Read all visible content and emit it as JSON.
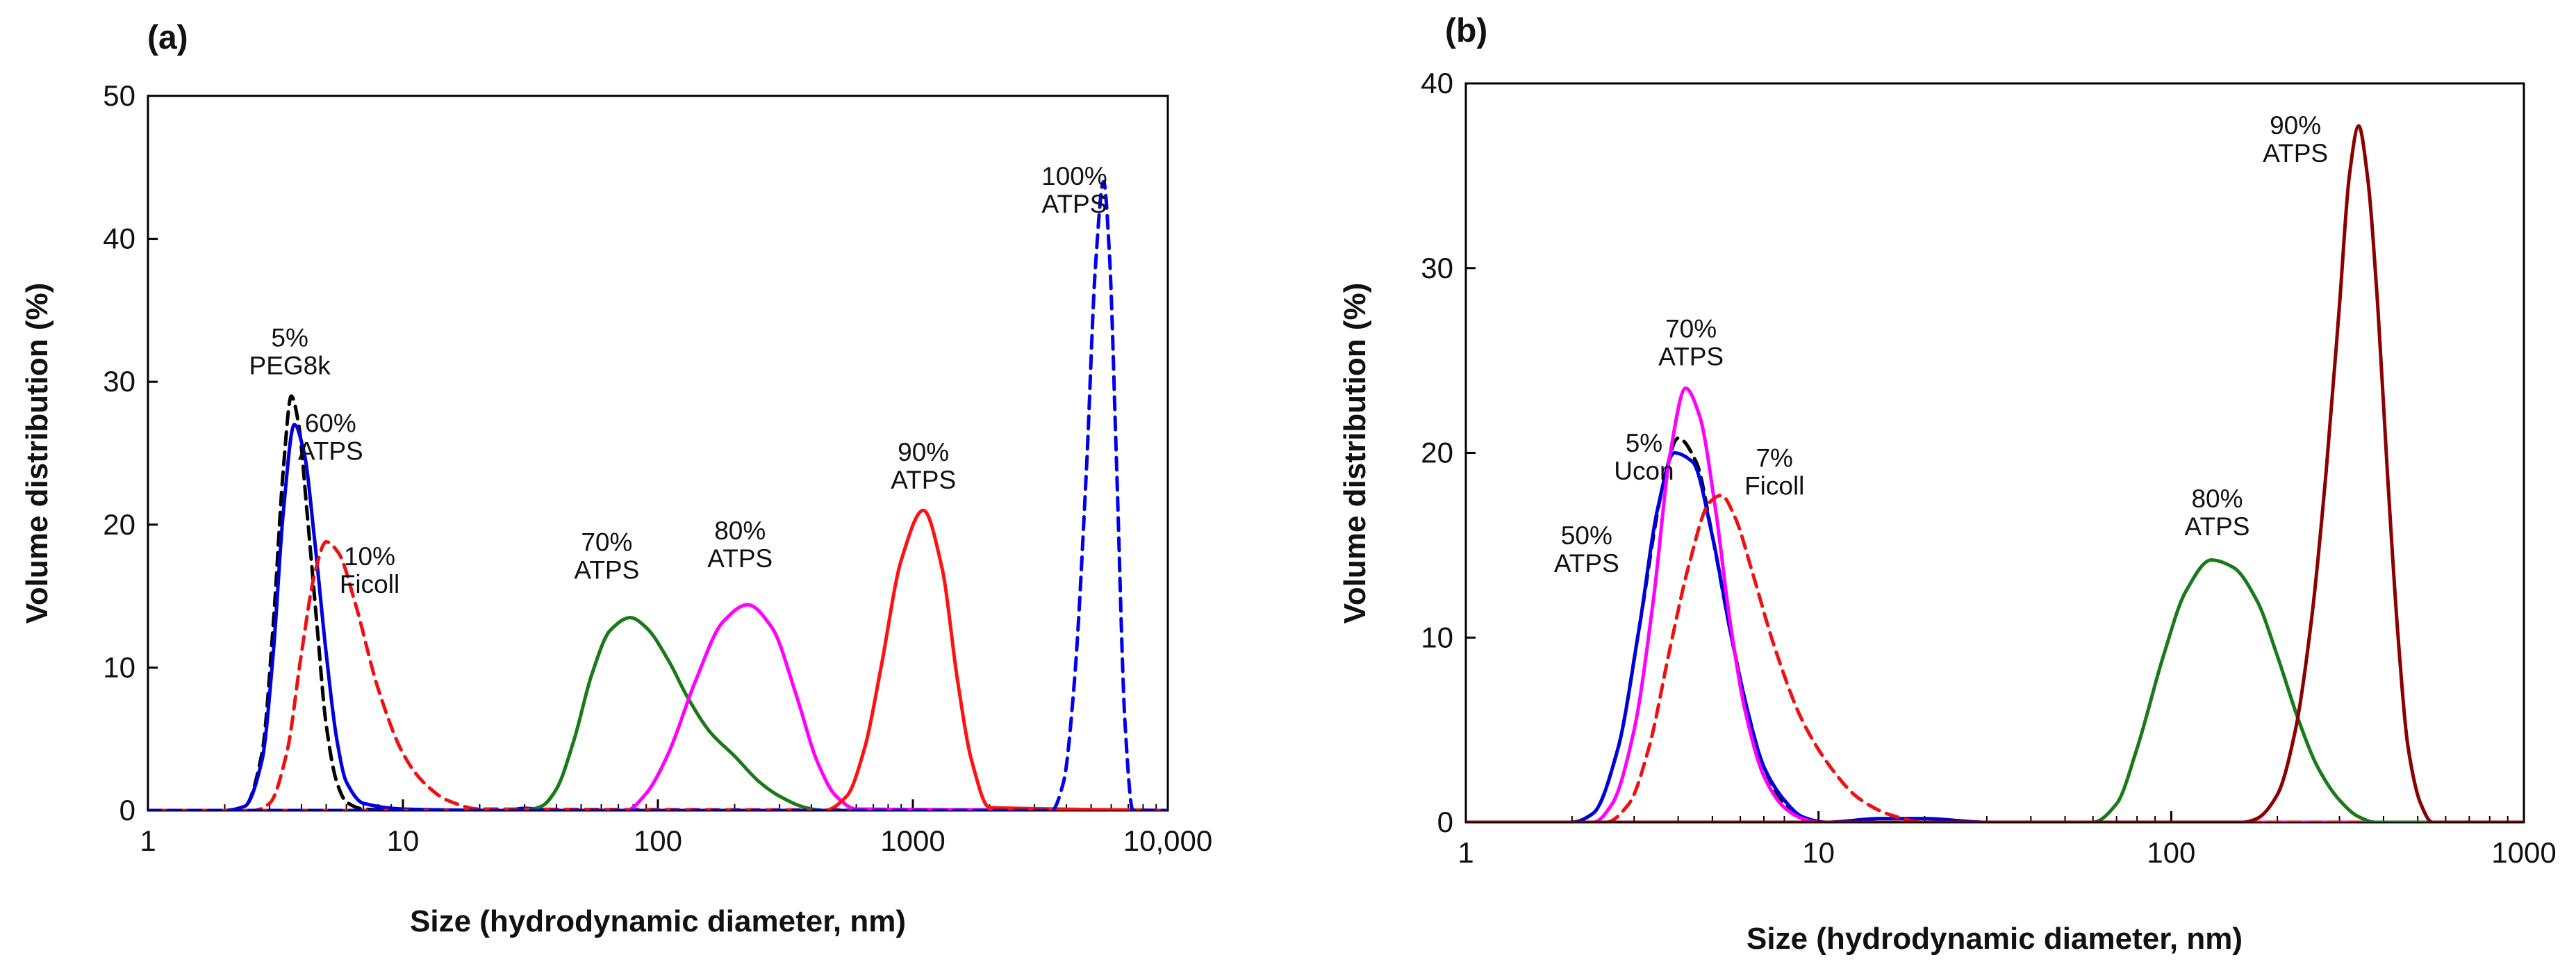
{
  "chart_data": [
    {
      "panel": "(a)",
      "type": "line",
      "xscale": "log",
      "xlabel": "Size (hydrodynamic diameter, nm)",
      "ylabel": "Volume distribution (%)",
      "xlim": [
        1,
        10000
      ],
      "ylim": [
        0,
        50
      ],
      "xticks": [
        1,
        10,
        100,
        1000,
        10000
      ],
      "xtick_labels": [
        "1",
        "10",
        "100",
        "1000",
        "10,000"
      ],
      "yticks": [
        0,
        10,
        20,
        30,
        40,
        50
      ],
      "ytick_labels": [
        "0",
        "10",
        "20",
        "30",
        "40",
        "50"
      ],
      "grid": false,
      "series": [
        {
          "name": "5% PEG8k",
          "color": "#000000",
          "dashed": true,
          "x": [
            1,
            2,
            2.4,
            2.8,
            3.1,
            3.4,
            3.65,
            3.9,
            4.2,
            4.6,
            5.0,
            5.5,
            6.0,
            7,
            10,
            10000
          ],
          "y": [
            0,
            0,
            0.3,
            4,
            13,
            24,
            29,
            27,
            21,
            13,
            6,
            2,
            0.6,
            0.1,
            0,
            0
          ]
        },
        {
          "name": "60% ATPS",
          "color": "#0000dd",
          "dashed": false,
          "x": [
            1,
            2,
            2.4,
            2.8,
            3.1,
            3.4,
            3.75,
            4.1,
            4.5,
            5.0,
            5.5,
            6.0,
            7,
            10,
            25,
            30,
            40,
            100,
            10000
          ],
          "y": [
            0,
            0,
            0.3,
            3.5,
            11,
            21,
            27,
            25,
            19,
            11,
            5,
            2,
            0.5,
            0.1,
            0,
            0.15,
            0,
            0,
            0
          ]
        },
        {
          "name": "10% Ficoll",
          "color": "#ee1111",
          "dashed": true,
          "x": [
            1,
            2.6,
            3.0,
            3.5,
            4.0,
            4.5,
            5.0,
            5.6,
            6.5,
            8,
            10,
            12,
            15,
            20,
            10000
          ],
          "y": [
            0,
            0,
            0.5,
            4,
            11,
            16.5,
            18.8,
            18,
            14.5,
            8.5,
            4,
            2,
            0.7,
            0.1,
            0
          ]
        },
        {
          "name": "70% ATPS",
          "color": "#1a7a1a",
          "dashed": false,
          "x": [
            1,
            30,
            35,
            40,
            47,
            55,
            65,
            78,
            90,
            110,
            130,
            160,
            200,
            250,
            300,
            380,
            450,
            10000
          ],
          "y": [
            0,
            0,
            0.3,
            1.5,
            5,
            9.5,
            12.6,
            13.5,
            12.8,
            10.5,
            8,
            5.5,
            3.8,
            2,
            1,
            0.2,
            0,
            0
          ]
        },
        {
          "name": "80% ATPS",
          "color": "#ff00ff",
          "dashed": false,
          "x": [
            1,
            75,
            90,
            110,
            140,
            180,
            225,
            280,
            350,
            420,
            500,
            600,
            10000
          ],
          "y": [
            0,
            0,
            1.2,
            4,
            9,
            13.2,
            14.4,
            12.8,
            8,
            3.5,
            1,
            0.1,
            0
          ]
        },
        {
          "name": "90% ATPS",
          "color": "#ff1111",
          "dashed": false,
          "x": [
            1,
            450,
            550,
            650,
            750,
            900,
            1100,
            1300,
            1500,
            1700,
            2000,
            10000
          ],
          "y": [
            0,
            0,
            1,
            4.5,
            10,
            17.5,
            21,
            17,
            9,
            3.5,
            0.2,
            0
          ]
        },
        {
          "name": "100% ATPS",
          "color": "#0000ee",
          "dashed": true,
          "x": [
            1,
            3500,
            3900,
            4300,
            4800,
            5200,
            5600,
            5900,
            6300,
            6800,
            7300,
            10000
          ],
          "y": [
            0,
            0,
            2,
            9,
            24,
            38,
            44,
            39,
            24,
            6,
            0,
            0
          ]
        }
      ],
      "annotations": [
        {
          "lines": [
            "5%",
            "PEG8k"
          ],
          "x": 3.6,
          "y": 31.5
        },
        {
          "lines": [
            "60%",
            "ATPS"
          ],
          "x": 5.2,
          "y": 25.5
        },
        {
          "lines": [
            "10%",
            "Ficoll"
          ],
          "x": 7.4,
          "y": 16.2
        },
        {
          "lines": [
            "70%",
            "ATPS"
          ],
          "x": 63,
          "y": 17.2
        },
        {
          "lines": [
            "80%",
            "ATPS"
          ],
          "x": 210,
          "y": 18
        },
        {
          "lines": [
            "90%",
            "ATPS"
          ],
          "x": 1100,
          "y": 23.5
        },
        {
          "lines": [
            "100%",
            "ATPS"
          ],
          "x": 4300,
          "y": 42.8
        }
      ]
    },
    {
      "panel": "(b)",
      "type": "line",
      "xscale": "log",
      "xlabel": "Size (hydrodynamic diameter, nm)",
      "ylabel": "Volume distribution (%)",
      "xlim": [
        1,
        1000
      ],
      "ylim": [
        0,
        40
      ],
      "xticks": [
        1,
        10,
        100,
        1000
      ],
      "xtick_labels": [
        "1",
        "10",
        "100",
        "1000"
      ],
      "yticks": [
        0,
        10,
        20,
        30,
        40
      ],
      "ytick_labels": [
        "0",
        "10",
        "20",
        "30",
        "40"
      ],
      "grid": false,
      "series": [
        {
          "name": "5% Ucon",
          "color": "#000000",
          "dashed": true,
          "x": [
            1,
            2.0,
            2.3,
            2.7,
            3.1,
            3.6,
            4.0,
            4.5,
            5.0,
            5.6,
            6.3,
            7,
            8,
            9,
            10,
            1000
          ],
          "y": [
            0,
            0,
            0.5,
            4,
            10.5,
            18,
            20.8,
            19.5,
            15.5,
            10.5,
            6,
            3,
            1,
            0.3,
            0,
            0
          ]
        },
        {
          "name": "50% ATPS",
          "color": "#0000dd",
          "dashed": false,
          "x": [
            1,
            2.0,
            2.3,
            2.7,
            3.1,
            3.5,
            3.9,
            4.4,
            5.0,
            5.6,
            6.3,
            7,
            8,
            9,
            10.5,
            15,
            20,
            30,
            1000
          ],
          "y": [
            0,
            0,
            0.5,
            4,
            10.5,
            17,
            20,
            19.5,
            15.5,
            10.5,
            6,
            3,
            1.2,
            0.3,
            0,
            0.2,
            0.2,
            0,
            0
          ]
        },
        {
          "name": "70% ATPS",
          "color": "#ff00ff",
          "dashed": false,
          "x": [
            1,
            2.3,
            2.6,
            3.0,
            3.4,
            3.8,
            4.2,
            4.6,
            5.1,
            5.6,
            6.2,
            7,
            8,
            9,
            10,
            1000
          ],
          "y": [
            0,
            0,
            1,
            5,
            12,
            20,
            23.5,
            22,
            17,
            11,
            6,
            2.5,
            0.8,
            0.2,
            0,
            0
          ]
        },
        {
          "name": "7% Ficoll",
          "color": "#ee1111",
          "dashed": true,
          "x": [
            1,
            2.5,
            2.9,
            3.3,
            3.8,
            4.3,
            4.9,
            5.3,
            5.8,
            6.5,
            7.5,
            9,
            11,
            13,
            16,
            20,
            1000
          ],
          "y": [
            0,
            0,
            1,
            4,
            9.5,
            14,
            17.3,
            17.7,
            16.5,
            13.5,
            9.5,
            5.5,
            2.8,
            1.3,
            0.4,
            0,
            0
          ]
        },
        {
          "name": "80% ATPS",
          "color": "#1a7a1a",
          "dashed": false,
          "x": [
            1,
            60,
            70,
            80,
            95,
            110,
            130,
            150,
            175,
            200,
            230,
            260,
            300,
            340,
            380,
            1000
          ],
          "y": [
            0,
            0,
            1,
            4,
            9,
            12.5,
            14.2,
            13.8,
            12,
            9,
            5.5,
            3,
            1.2,
            0.3,
            0,
            0
          ]
        },
        {
          "name": "90% ATPS",
          "color": "#8b0000",
          "dashed": false,
          "x": [
            1,
            160,
            175,
            200,
            225,
            250,
            275,
            300,
            320,
            340,
            360,
            385,
            410,
            440,
            470,
            510,
            550,
            1000
          ],
          "y": [
            0,
            0,
            0.2,
            1.5,
            5,
            11,
            19,
            28,
            35,
            37.7,
            35,
            28,
            19,
            10,
            4,
            1,
            0,
            0
          ]
        }
      ],
      "annotations": [
        {
          "lines": [
            "70%",
            "ATPS"
          ],
          "x": 4.35,
          "y": 25.5
        },
        {
          "lines": [
            "5%",
            "Ucon"
          ],
          "x": 3.2,
          "y": 19.3
        },
        {
          "lines": [
            "7%",
            "Ficoll"
          ],
          "x": 7.5,
          "y": 18.5
        },
        {
          "lines": [
            "50%",
            "ATPS"
          ],
          "x": 2.2,
          "y": 14.3
        },
        {
          "lines": [
            "80%",
            "ATPS"
          ],
          "x": 135,
          "y": 16.3
        },
        {
          "lines": [
            "90%",
            "ATPS"
          ],
          "x": 225,
          "y": 36.5
        }
      ]
    }
  ]
}
